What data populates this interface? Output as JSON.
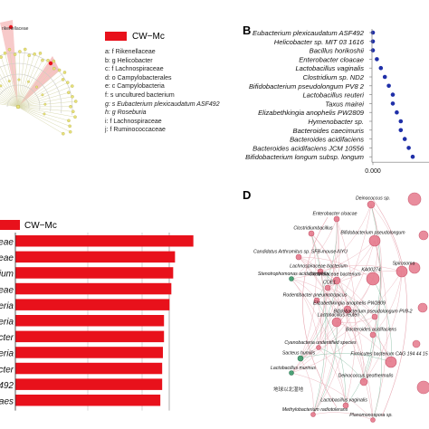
{
  "panel_a": {
    "tree_label": "rikenellaceae",
    "legend_title": "CW−Mc",
    "legend_items": [
      "a: f  Rikenellaceae",
      "b: g  Helicobacter",
      "c: f  Lachnospiraceae",
      "d: o  Campylobacterales",
      "e: c  Campylobacteria",
      "f: s  uncultured bacterium",
      "g: s  Eubacterium plexicaudatum ASF492",
      "h: g  Roseburia",
      "i: f  Lachnospiraceae",
      "j: f  Ruminococcaceae"
    ]
  },
  "panel_b": {
    "label": "B",
    "x_tick": "0.000",
    "chart_data": {
      "type": "scatter",
      "categories": [
        "Eubacterium plexicaudatum ASF492",
        "Helicobacter sp. MIT 03 1616",
        "Bacillus horikoshii",
        "Enterobacter cloacae",
        "Lactobacillus vaginalis",
        "Clostridium sp. ND2",
        "Bifidobacterium pseudolongum PV8 2",
        "Lactobacillus reuteri",
        "Taxus mairei",
        "Elizabethkingia anophelis PW2809",
        "Hymenobacter sp.",
        "Bacteroides caecimuris",
        "Bacteroides acidifaciens",
        "Bacteroides acidifaciens JCM 10556",
        "Bifidobacterium longum subsp. longum"
      ],
      "values": [
        0.0,
        0.0,
        0.0,
        0.001,
        0.002,
        0.003,
        0.004,
        0.005,
        0.005,
        0.006,
        0.007,
        0.007,
        0.008,
        0.009,
        0.01
      ]
    }
  },
  "panel_c": {
    "legend_label": "CW−Mc",
    "colors": {
      "bar": "#e8111b"
    },
    "chart_data": {
      "type": "bar",
      "categories": [
        "aceae",
        "aceae",
        "idium",
        "iaceae",
        "bacteria",
        "teria",
        "acter",
        "cteria",
        "acter",
        "492",
        "idaes"
      ],
      "values": [
        4.85,
        4.35,
        4.3,
        4.25,
        4.2,
        4.05,
        4.05,
        4.02,
        4.0,
        4.0,
        3.95
      ],
      "xlim": [
        0,
        5
      ]
    }
  },
  "panel_d": {
    "label": "D",
    "node_labels": [
      "Deinococcus sp.",
      "Enterobacter cloacae",
      "Clostridiumbacillus",
      "Bifidobacterium pseudolongum",
      "Candidatus Arthromitus sp. SFB-mouse-NYU",
      "Lachnospiraceae bacterium",
      "Stenotrophomonas acidaminiphila",
      "Clostridiaceae bacterium",
      "COE1",
      "KA00274",
      "Spirosoma",
      "Rodentibacter pneumotropicus",
      "Elizabethkingia anophelis PW2809",
      "Bifidobacterium pseudolongum PV8-2",
      "Lactobacillus reuteri",
      "Bacteroides acidifaciens",
      "Cyanobacteria undentified species",
      "Sacteus humilis",
      "Lactobacillus murinus",
      "Firmicutes bacterium CAG 194 44 15",
      "Deinococcus geothermalis",
      "Lactobacillus vaginalis",
      "Methylobacterium radiotolerans",
      "Planomonospora sp."
    ],
    "chinese_label": "地球以北湿地"
  }
}
